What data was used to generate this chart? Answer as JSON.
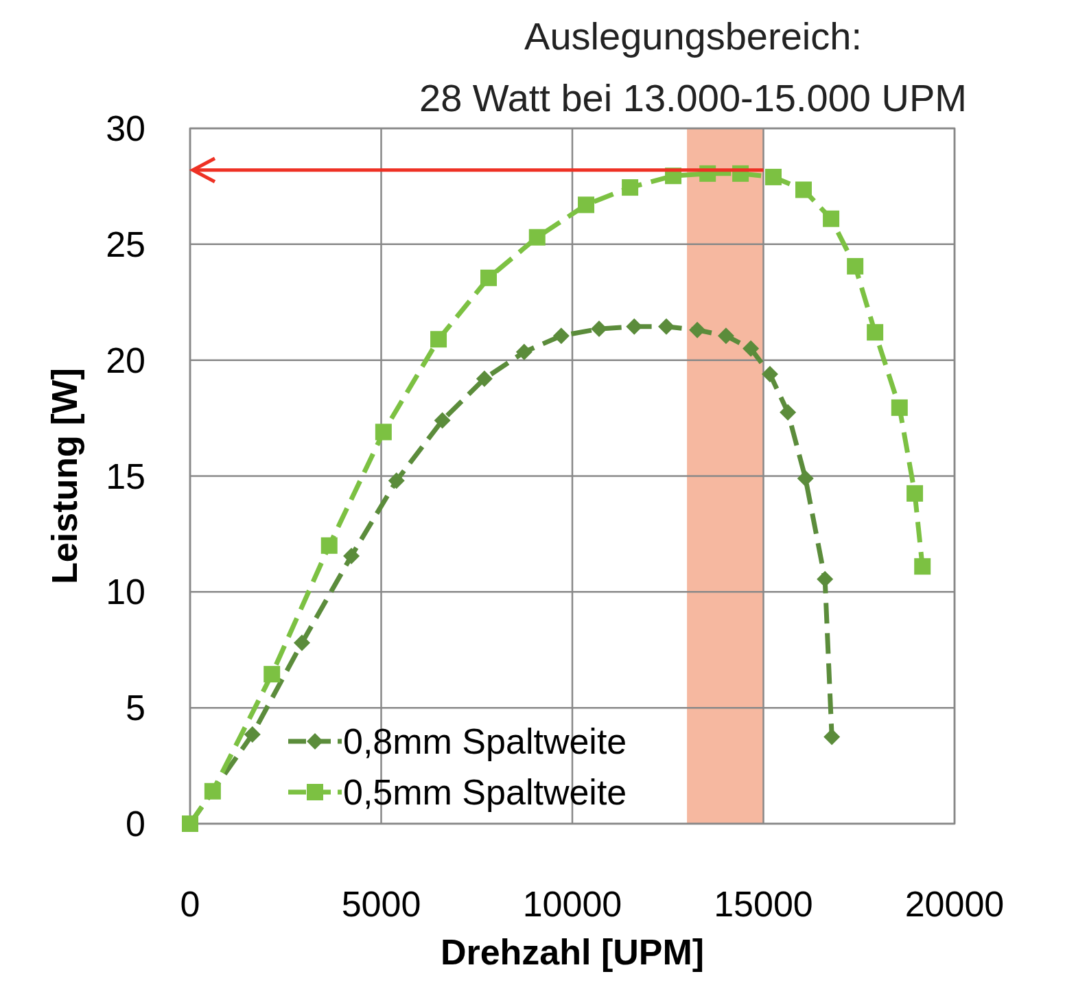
{
  "chart_data": {
    "type": "line",
    "title": "Auslegungsbereich:",
    "subtitle": "28 Watt bei 13.000-15.000 UPM",
    "xlabel": "Drehzahl [UPM]",
    "ylabel": "Leistung [W]",
    "xlim": [
      0,
      20000
    ],
    "xticks": [
      0,
      5000,
      10000,
      15000,
      20000
    ],
    "ylim": [
      0,
      30
    ],
    "yticks": [
      0,
      5,
      10,
      15,
      20,
      25,
      30
    ],
    "grid": true,
    "legend": "bottom",
    "line_style": "dashed",
    "series": [
      {
        "name": "0,8mm Spaltweite",
        "color": "#5b8c3b",
        "marker": "diamond",
        "x": [
          0,
          1630,
          2926,
          4220,
          5400,
          6600,
          7700,
          8740,
          9710,
          10700,
          11620,
          12460,
          13270,
          14020,
          14670,
          15170,
          15640,
          16100,
          16610,
          16790
        ],
        "values": [
          0,
          3.85,
          7.8,
          11.55,
          14.8,
          17.4,
          19.2,
          20.35,
          21.05,
          21.35,
          21.45,
          21.45,
          21.3,
          21.05,
          20.5,
          19.4,
          17.75,
          14.9,
          10.55,
          3.75
        ]
      },
      {
        "name": "0,5mm Spaltweite",
        "color": "#7cc142",
        "marker": "square",
        "x": [
          0,
          590,
          2140,
          3640,
          5060,
          6500,
          7810,
          9080,
          10360,
          11510,
          12640,
          13540,
          14400,
          15260,
          16050,
          16770,
          17400,
          17920,
          18560,
          18960,
          19160
        ],
        "values": [
          0,
          1.4,
          6.45,
          12.0,
          16.9,
          20.9,
          23.55,
          25.3,
          26.7,
          27.45,
          27.95,
          28.05,
          28.05,
          27.9,
          27.35,
          26.1,
          24.05,
          21.2,
          17.95,
          14.25,
          11.1
        ]
      }
    ],
    "bands": [
      {
        "axis": "x",
        "from": 13000,
        "to": 15000,
        "color": "#f6b8a0"
      }
    ],
    "ref_lines": [
      {
        "axis": "y",
        "value": 28.2,
        "color": "#ee3124"
      }
    ]
  }
}
